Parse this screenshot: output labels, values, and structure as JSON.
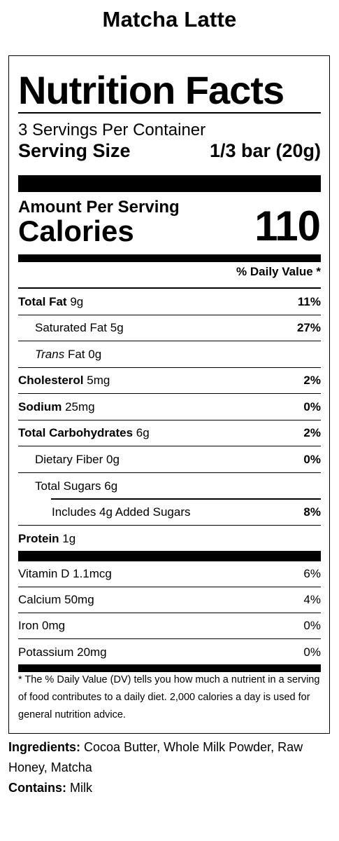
{
  "product_name": "Matcha Latte",
  "title": "Nutrition Facts",
  "servings_per_container": "3 Servings Per Container",
  "serving_size_label": "Serving Size",
  "serving_size_value": "1/3 bar (20g)",
  "amount_per_serving": "Amount Per Serving",
  "calories_label": "Calories",
  "calories_value": "110",
  "daily_value_header": "% Daily Value *",
  "nutrients": [
    {
      "name": "Total Fat",
      "amount": "9g",
      "dv": "11%"
    },
    {
      "name": "Saturated Fat",
      "amount": "5g",
      "dv": "27%"
    },
    {
      "name_prefix": "Trans",
      "name": "Fat",
      "amount": "0g",
      "dv": ""
    },
    {
      "name": "Cholesterol",
      "amount": "5mg",
      "dv": "2%"
    },
    {
      "name": "Sodium",
      "amount": "25mg",
      "dv": "0%"
    },
    {
      "name": "Total Carbohydrates",
      "amount": "6g",
      "dv": "2%"
    },
    {
      "name": "Dietary Fiber",
      "amount": "0g",
      "dv": "0%"
    },
    {
      "name": "Total Sugars",
      "amount": "6g",
      "dv": ""
    },
    {
      "name": "Includes 4g Added Sugars",
      "amount": "",
      "dv": "8%"
    },
    {
      "name": "Protein",
      "amount": "1g",
      "dv": ""
    }
  ],
  "vitamins": [
    {
      "name": "Vitamin D",
      "amount": "1.1mcg",
      "dv": "6%"
    },
    {
      "name": "Calcium",
      "amount": "50mg",
      "dv": "4%"
    },
    {
      "name": "Iron",
      "amount": "0mg",
      "dv": "0%"
    },
    {
      "name": "Potassium",
      "amount": "20mg",
      "dv": "0%"
    }
  ],
  "footnote": "* The % Daily Value (DV) tells you how much a nutrient in a serving of food contributes to a daily diet. 2,000 calories a day is used for general nutrition advice.",
  "ingredients_label": "Ingredients:",
  "ingredients_text": "Cocoa Butter, Whole Milk Powder, Raw Honey, Matcha",
  "contains_label": "Contains:",
  "contains_text": "Milk"
}
